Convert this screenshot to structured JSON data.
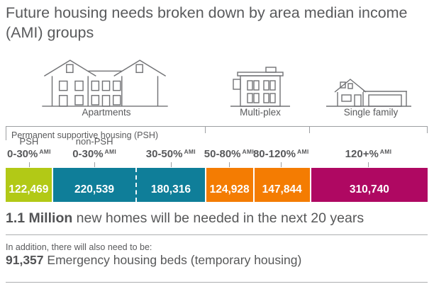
{
  "title": "Future housing needs broken down by area median income (AMI) groups",
  "buildings": [
    {
      "label": "Apartments"
    },
    {
      "label": "Multi-plex"
    },
    {
      "label": "Single family"
    }
  ],
  "psh_bracket_label": "Permanent supportive housing (PSH)",
  "colors": {
    "text_gray": "#58595b",
    "line_gray": "#9d9fa2",
    "green": "#b2c916",
    "teal": "#0f7e99",
    "orange": "#f47c02",
    "magenta": "#af0862"
  },
  "chart_data": {
    "type": "bar",
    "variant": "horizontal-stacked-proportional",
    "title": "Future housing needs broken down by area median income (AMI) groups",
    "unit": "new homes needed in the next 20 years",
    "building_groups": [
      {
        "label": "Apartments",
        "segment_count": 3
      },
      {
        "label": "Multi-plex",
        "segment_count": 2
      },
      {
        "label": "Single family",
        "segment_count": 1
      }
    ],
    "segments": [
      {
        "group": "PSH",
        "range": "0-30%",
        "sup": "AMI",
        "value": 122469,
        "display": "122,469",
        "color": "#b2c916"
      },
      {
        "group": "non-PSH",
        "range": "0-30%",
        "sup": "AMI",
        "value": 220539,
        "display": "220,539",
        "color": "#0f7e99"
      },
      {
        "group": "",
        "range": "30-50%",
        "sup": "AMI",
        "value": 180316,
        "display": "180,316",
        "color": "#0f7e99",
        "divider_before": "dashed"
      },
      {
        "group": "",
        "range": "50-80%",
        "sup": "AMI",
        "value": 124928,
        "display": "124,928",
        "color": "#f47c02"
      },
      {
        "group": "",
        "range": "80-120%",
        "sup": "AMI",
        "value": 147844,
        "display": "147,844",
        "color": "#f47c02"
      },
      {
        "group": "",
        "range": "120+%",
        "sup": "AMI",
        "value": 310740,
        "display": "310,740",
        "color": "#af0862"
      }
    ]
  },
  "summary": {
    "highlight": "1.1 Million",
    "text": " new homes will be needed in the next 20 years"
  },
  "addition": {
    "intro": "In addition, there will also need to be:",
    "highlight": "91,357",
    "text": " Emergency housing beds (temporary housing)"
  }
}
